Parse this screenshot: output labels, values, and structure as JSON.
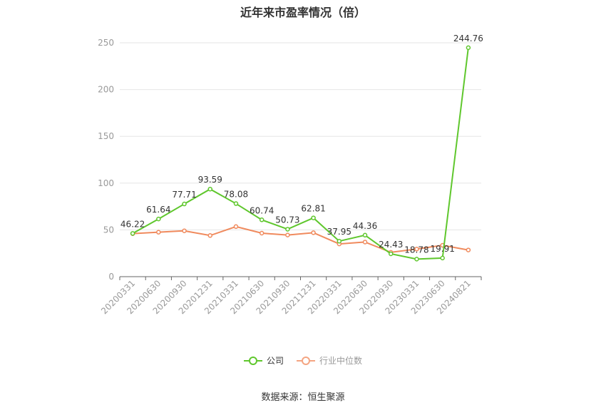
{
  "title": "近年来市盈率情况（倍）",
  "source": "数据来源：恒生聚源",
  "legend": [
    {
      "label": "公司",
      "color": "#5fc72d",
      "icon": "circle-line-icon"
    },
    {
      "label": "行业中位数",
      "color": "#f4a582",
      "icon": "circle-line-icon"
    }
  ],
  "chart_data": {
    "type": "line",
    "title": "近年来市盈率情况（倍）",
    "xlabel": "",
    "ylabel": "",
    "ylim": [
      0,
      250
    ],
    "yticks": [
      0,
      50,
      100,
      150,
      200,
      250
    ],
    "grid": true,
    "legend_position": "bottom",
    "categories": [
      "20200331",
      "20200630",
      "20200930",
      "20201231",
      "20210331",
      "20210630",
      "20210930",
      "20211231",
      "20220331",
      "20220630",
      "20220930",
      "20230331",
      "20230630",
      "20240821"
    ],
    "series": [
      {
        "name": "公司",
        "color": "#5fc72d",
        "values": [
          46.22,
          61.64,
          77.71,
          93.59,
          78.08,
          60.74,
          50.73,
          62.81,
          37.95,
          44.36,
          24.43,
          18.78,
          19.91,
          244.76
        ],
        "labels": [
          "46.22",
          "61.64",
          "77.71",
          "93.59",
          "78.08",
          "60.74",
          "50.73",
          "62.81",
          "37.95",
          "44.36",
          "24.43",
          "18.78",
          "19.91",
          "244.76"
        ]
      },
      {
        "name": "行业中位数",
        "color": "#f08a5d",
        "values": [
          46,
          47.5,
          49,
          44,
          53.5,
          46.5,
          44.5,
          47,
          35,
          37,
          26,
          29.5,
          33.5,
          28.5
        ]
      }
    ]
  }
}
